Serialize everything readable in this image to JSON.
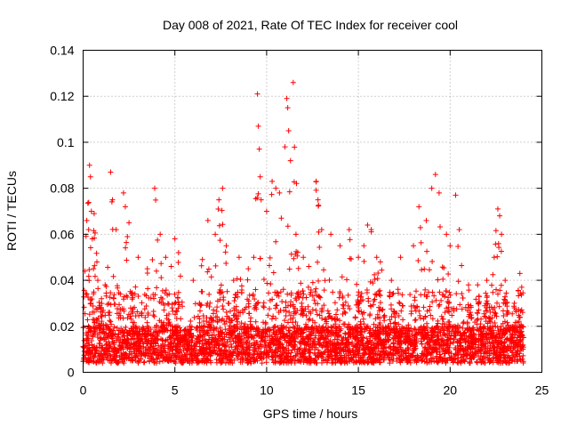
{
  "chart_data": {
    "type": "scatter",
    "title": "Day 008 of 2021, Rate Of TEC Index for receiver cool",
    "xlabel": "GPS time / hours",
    "ylabel": "ROTI / TECUs",
    "xlim": [
      0,
      25
    ],
    "ylim": [
      0,
      0.14
    ],
    "x_ticks": [
      0,
      5,
      10,
      15,
      20,
      25
    ],
    "x_tick_labels": [
      "0",
      "5",
      "10",
      "15",
      "20",
      "25"
    ],
    "y_ticks": [
      0,
      0.02,
      0.04,
      0.06,
      0.08,
      0.1,
      0.12,
      0.14
    ],
    "y_tick_labels": [
      "0",
      "0.02",
      "0.04",
      "0.06",
      "0.08",
      "0.1",
      "0.12",
      "0.14"
    ],
    "grid": true,
    "marker": "plus",
    "color": "#ff0000",
    "series": [
      {
        "name": "",
        "x_range": [
          0,
          24
        ],
        "points": [
          [
            0.1,
            0.044
          ],
          [
            0.2,
            0.066
          ],
          [
            0.3,
            0.062
          ],
          [
            0.35,
            0.09
          ],
          [
            0.4,
            0.085
          ],
          [
            0.45,
            0.07
          ],
          [
            0.5,
            0.058
          ],
          [
            0.6,
            0.069
          ],
          [
            0.8,
            0.04
          ],
          [
            1.0,
            0.032
          ],
          [
            1.2,
            0.038
          ],
          [
            1.5,
            0.087
          ],
          [
            1.6,
            0.075
          ],
          [
            1.8,
            0.062
          ],
          [
            2.2,
            0.078
          ],
          [
            2.3,
            0.072
          ],
          [
            2.5,
            0.065
          ],
          [
            3.0,
            0.05
          ],
          [
            3.5,
            0.045
          ],
          [
            3.9,
            0.08
          ],
          [
            4.2,
            0.06
          ],
          [
            4.5,
            0.05
          ],
          [
            4.8,
            0.046
          ],
          [
            5.0,
            0.058
          ],
          [
            5.2,
            0.052
          ],
          [
            6.0,
            0.04
          ],
          [
            6.5,
            0.049
          ],
          [
            6.8,
            0.066
          ],
          [
            7.2,
            0.06
          ],
          [
            7.4,
            0.075
          ],
          [
            7.6,
            0.08
          ],
          [
            7.8,
            0.055
          ],
          [
            8.2,
            0.04
          ],
          [
            8.5,
            0.05
          ],
          [
            9.0,
            0.045
          ],
          [
            9.3,
            0.05
          ],
          [
            9.5,
            0.121
          ],
          [
            9.55,
            0.107
          ],
          [
            9.6,
            0.097
          ],
          [
            9.65,
            0.085
          ],
          [
            9.7,
            0.075
          ],
          [
            10.0,
            0.07
          ],
          [
            10.3,
            0.083
          ],
          [
            10.5,
            0.08
          ],
          [
            10.7,
            0.078
          ],
          [
            10.8,
            0.067
          ],
          [
            11.0,
            0.098
          ],
          [
            11.1,
            0.119
          ],
          [
            11.15,
            0.115
          ],
          [
            11.2,
            0.105
          ],
          [
            11.3,
            0.092
          ],
          [
            11.45,
            0.126
          ],
          [
            11.6,
            0.06
          ],
          [
            12.0,
            0.05
          ],
          [
            12.3,
            0.046
          ],
          [
            12.7,
            0.083
          ],
          [
            12.8,
            0.075
          ],
          [
            13.0,
            0.062
          ],
          [
            13.5,
            0.06
          ],
          [
            14.0,
            0.055
          ],
          [
            14.5,
            0.062
          ],
          [
            15.0,
            0.05
          ],
          [
            15.3,
            0.055
          ],
          [
            15.5,
            0.064
          ],
          [
            15.7,
            0.062
          ],
          [
            16.0,
            0.05
          ],
          [
            16.2,
            0.048
          ],
          [
            16.8,
            0.04
          ],
          [
            17.3,
            0.05
          ],
          [
            18.0,
            0.055
          ],
          [
            18.3,
            0.072
          ],
          [
            18.7,
            0.066
          ],
          [
            19.0,
            0.08
          ],
          [
            19.2,
            0.086
          ],
          [
            19.4,
            0.078
          ],
          [
            19.8,
            0.06
          ],
          [
            20.0,
            0.055
          ],
          [
            20.3,
            0.077
          ],
          [
            20.5,
            0.062
          ],
          [
            21.0,
            0.038
          ],
          [
            21.5,
            0.038
          ],
          [
            22.0,
            0.04
          ],
          [
            22.4,
            0.05
          ],
          [
            22.6,
            0.071
          ],
          [
            22.7,
            0.068
          ],
          [
            22.8,
            0.06
          ],
          [
            23.0,
            0.04
          ],
          [
            23.5,
            0.03
          ],
          [
            23.8,
            0.043
          ],
          [
            23.9,
            0.037
          ]
        ]
      }
    ]
  }
}
